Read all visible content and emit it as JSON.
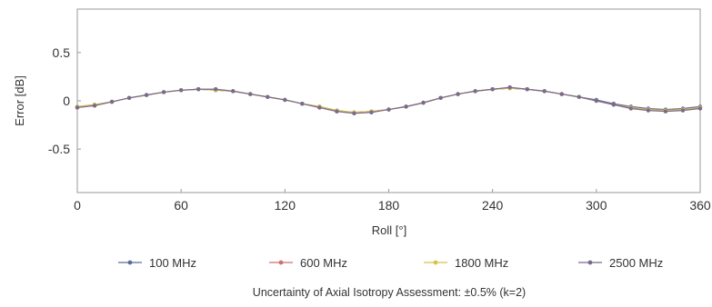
{
  "chart_data": {
    "type": "line",
    "title": "",
    "xlabel": "Roll [°]",
    "ylabel": "Error [dB]",
    "xlim": [
      0,
      360
    ],
    "ylim": [
      -0.95,
      0.95
    ],
    "xticks": [
      0,
      60,
      120,
      180,
      240,
      300,
      360
    ],
    "yticks": [
      0.5,
      0,
      -0.5
    ],
    "xtick_labels": [
      "0",
      "60",
      "120",
      "180",
      "240",
      "300",
      "360"
    ],
    "ytick_labels": [
      "0.5",
      "0",
      "-0.5"
    ],
    "grid": false,
    "legend_position": "bottom",
    "x": [
      0,
      10,
      20,
      30,
      40,
      50,
      60,
      70,
      80,
      90,
      100,
      110,
      120,
      130,
      140,
      150,
      160,
      170,
      180,
      190,
      200,
      210,
      220,
      230,
      240,
      250,
      260,
      270,
      280,
      290,
      300,
      310,
      320,
      330,
      340,
      350,
      360
    ],
    "series": [
      {
        "name": "100 MHz",
        "color": "#5b6c9a",
        "values": [
          -0.06,
          -0.04,
          -0.01,
          0.03,
          0.06,
          0.09,
          0.11,
          0.12,
          0.11,
          0.1,
          0.07,
          0.04,
          0.01,
          -0.03,
          -0.06,
          -0.1,
          -0.12,
          -0.11,
          -0.09,
          -0.06,
          -0.02,
          0.03,
          0.07,
          0.1,
          0.12,
          0.13,
          0.12,
          0.1,
          0.07,
          0.04,
          0.01,
          -0.03,
          -0.06,
          -0.08,
          -0.09,
          -0.08,
          -0.06
        ]
      },
      {
        "name": "600 MHz",
        "color": "#c9726e",
        "values": [
          -0.07,
          -0.05,
          -0.01,
          0.03,
          0.06,
          0.09,
          0.11,
          0.12,
          0.12,
          0.1,
          0.07,
          0.04,
          0.01,
          -0.03,
          -0.07,
          -0.11,
          -0.12,
          -0.11,
          -0.09,
          -0.06,
          -0.02,
          0.03,
          0.07,
          0.1,
          0.12,
          0.13,
          0.12,
          0.1,
          0.07,
          0.04,
          0.0,
          -0.04,
          -0.07,
          -0.09,
          -0.1,
          -0.09,
          -0.07
        ]
      },
      {
        "name": "1800 MHz",
        "color": "#d8c24a",
        "values": [
          -0.06,
          -0.04,
          -0.01,
          0.03,
          0.06,
          0.09,
          0.11,
          0.12,
          0.11,
          0.1,
          0.07,
          0.04,
          0.01,
          -0.03,
          -0.06,
          -0.1,
          -0.12,
          -0.11,
          -0.09,
          -0.06,
          -0.02,
          0.03,
          0.07,
          0.1,
          0.12,
          0.13,
          0.12,
          0.1,
          0.07,
          0.04,
          0.0,
          -0.04,
          -0.07,
          -0.09,
          -0.1,
          -0.09,
          -0.07
        ]
      },
      {
        "name": "2500 MHz",
        "color": "#7a6a8e",
        "values": [
          -0.07,
          -0.05,
          -0.01,
          0.03,
          0.06,
          0.09,
          0.11,
          0.12,
          0.12,
          0.1,
          0.07,
          0.04,
          0.01,
          -0.03,
          -0.07,
          -0.11,
          -0.13,
          -0.12,
          -0.09,
          -0.06,
          -0.02,
          0.03,
          0.07,
          0.1,
          0.12,
          0.14,
          0.12,
          0.1,
          0.07,
          0.04,
          0.0,
          -0.04,
          -0.08,
          -0.1,
          -0.11,
          -0.1,
          -0.08
        ]
      }
    ],
    "annotation": "Uncertainty of Axial Isotropy Assessment: ±0.5% (k=2)"
  }
}
